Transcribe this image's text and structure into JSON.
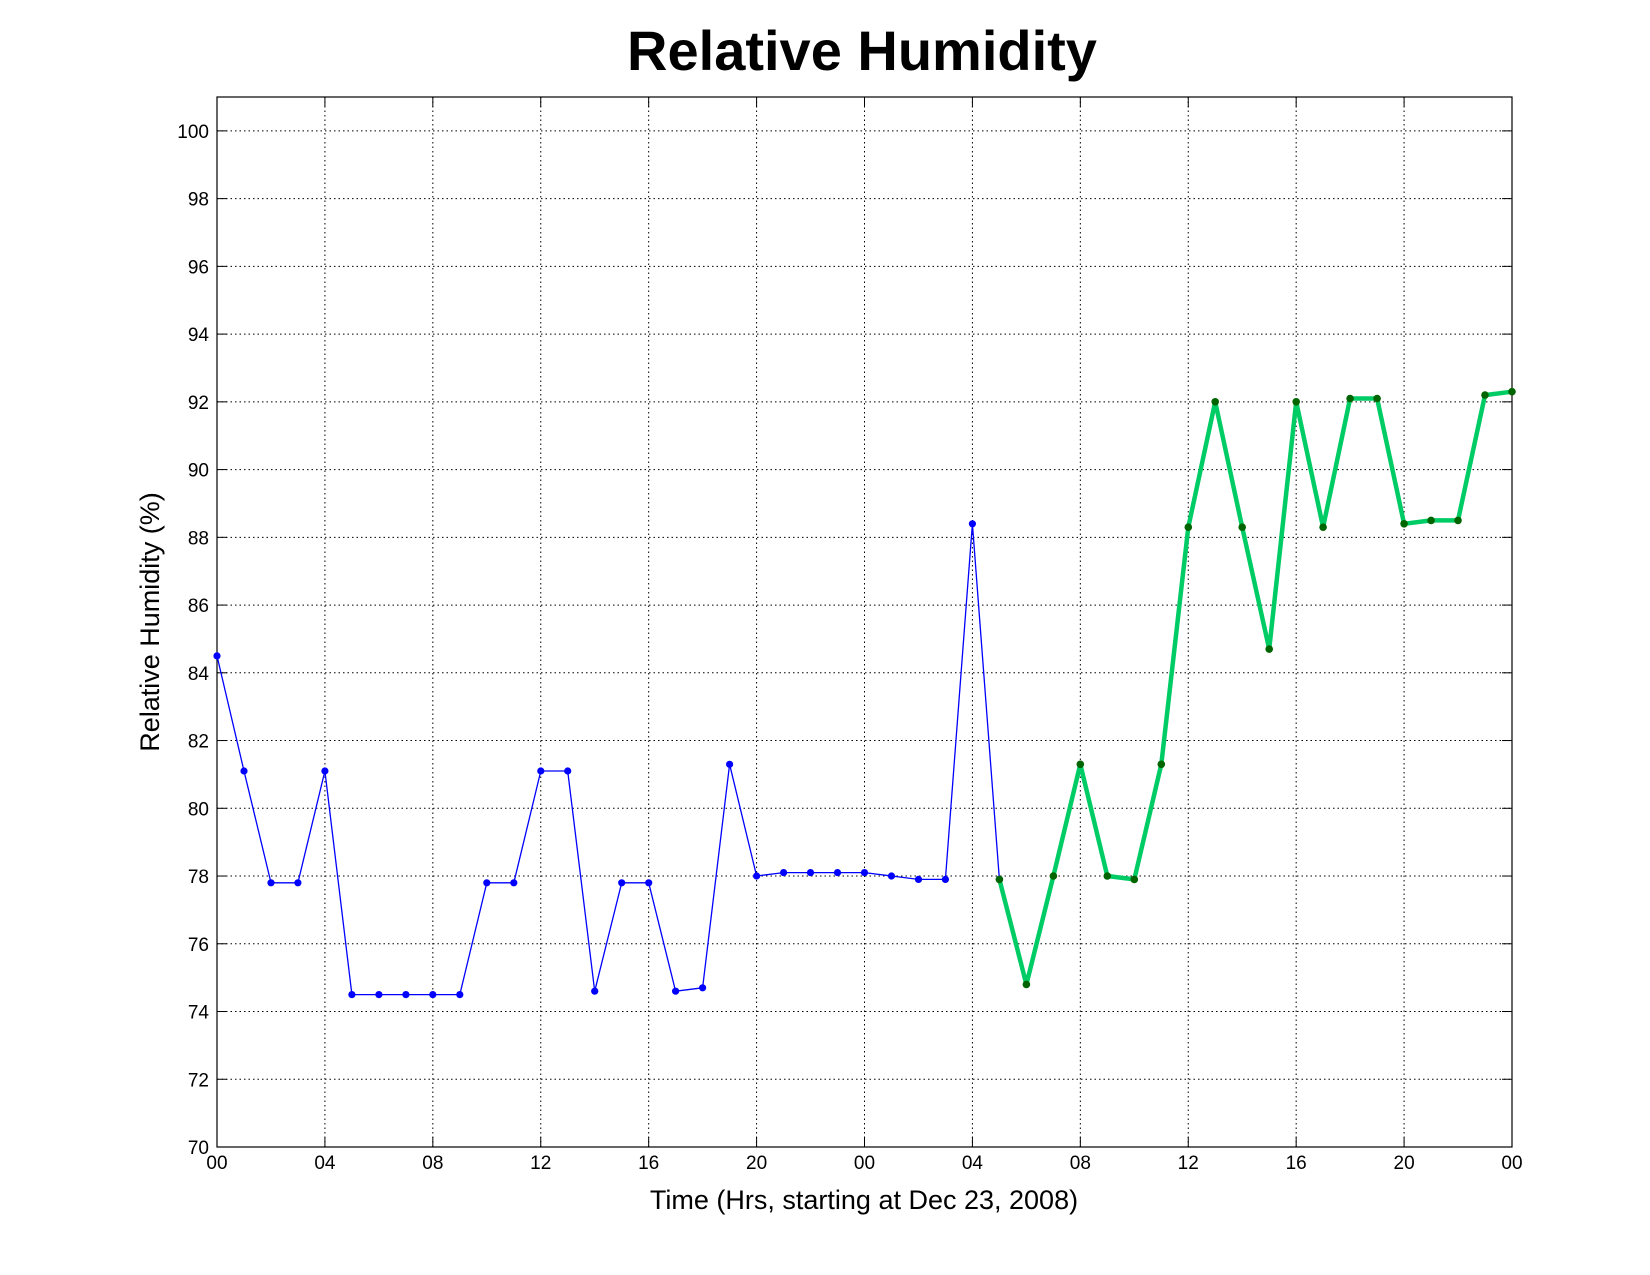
{
  "chart_data": {
    "type": "line",
    "title": "Relative Humidity",
    "xlabel": "Time (Hrs, starting at Dec 23, 2008)",
    "ylabel": "Relative Humidity (%)",
    "x_tick_labels": [
      "00",
      "04",
      "08",
      "12",
      "16",
      "20",
      "00",
      "04",
      "08",
      "12",
      "16",
      "20",
      "00"
    ],
    "y_ticks": [
      70,
      72,
      74,
      76,
      78,
      80,
      82,
      84,
      86,
      88,
      90,
      92,
      94,
      96,
      98,
      100
    ],
    "xlim": [
      0,
      48
    ],
    "ylim": [
      70,
      101
    ],
    "grid": true,
    "series": [
      {
        "color": "#0000ff",
        "marker_color": "#0000ff",
        "x": [
          0,
          1,
          2,
          3,
          4,
          5,
          6,
          7,
          8,
          9,
          10,
          11,
          12,
          13,
          14,
          15,
          16,
          17,
          18,
          19,
          20,
          21,
          22,
          23,
          24,
          25,
          26,
          27,
          28,
          29
        ],
        "y": [
          84.5,
          81.1,
          77.8,
          77.8,
          81.1,
          74.5,
          74.5,
          74.5,
          74.5,
          74.5,
          77.8,
          77.8,
          81.1,
          81.1,
          74.6,
          77.8,
          77.8,
          74.6,
          74.7,
          81.3,
          78.0,
          78.1,
          78.1,
          78.1,
          78.1,
          78.0,
          77.9,
          77.9,
          88.4,
          77.9
        ]
      },
      {
        "color": "#00cc66",
        "marker_color": "#006400",
        "x": [
          29,
          30,
          31,
          32,
          33,
          34,
          35,
          36,
          37,
          38,
          39,
          40,
          41,
          42,
          43,
          44,
          45,
          46,
          47,
          48
        ],
        "y": [
          77.9,
          74.8,
          78.0,
          81.3,
          78.0,
          77.9,
          81.3,
          88.3,
          92.0,
          88.3,
          84.7,
          92.0,
          88.3,
          92.1,
          92.1,
          88.4,
          88.5,
          88.5,
          92.2,
          92.3
        ]
      }
    ]
  }
}
